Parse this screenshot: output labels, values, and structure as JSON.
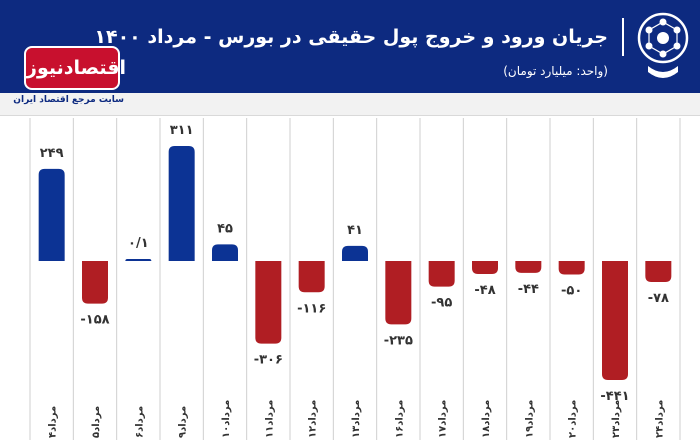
{
  "header": {
    "title": "جریان ورود و خروج پول حقیقی در بورس - مرداد ۱۴۰۰",
    "unit": "(واحد: میلیارد تومان)"
  },
  "brand": {
    "logo_text": "اقتصادنیوز",
    "tagline": "سایت مرجع اقتصاد ایران"
  },
  "colors": {
    "header_bg": "#0d2a80",
    "positive": "#0c3394",
    "negative": "#b01e23",
    "brand_red": "#c8102e"
  },
  "chart_data": {
    "type": "bar",
    "categories": [
      "۴مرداد",
      "۵مرداد",
      "۶مرداد",
      "۹مرداد",
      "۱۰مرداد",
      "۱۱مرداد",
      "۱۲مرداد",
      "۱۳مرداد",
      "۱۶مرداد",
      "۱۷مرداد",
      "۱۸مرداد",
      "۱۹مرداد",
      "۲۰مرداد",
      "۲۳مرداد",
      "۲۴مرداد"
    ],
    "values": [
      249,
      -158,
      0.1,
      311,
      45,
      -306,
      -116,
      41,
      -235,
      -95,
      -48,
      -44,
      -50,
      -441,
      -78
    ],
    "labels": [
      "۲۴۹",
      "-۱۵۸",
      "۰/۱",
      "۳۱۱",
      "۴۵",
      "-۳۰۶",
      "-۱۱۶",
      "۴۱",
      "-۲۳۵",
      "-۹۵",
      "-۴۸",
      "-۴۴",
      "-۵۰",
      "-۴۴۱",
      "-۷۸"
    ],
    "ylim": [
      -441,
      311
    ],
    "grid": "vertical",
    "title": "جریان ورود و خروج پول حقیقی در بورس - مرداد ۱۴۰۰"
  }
}
